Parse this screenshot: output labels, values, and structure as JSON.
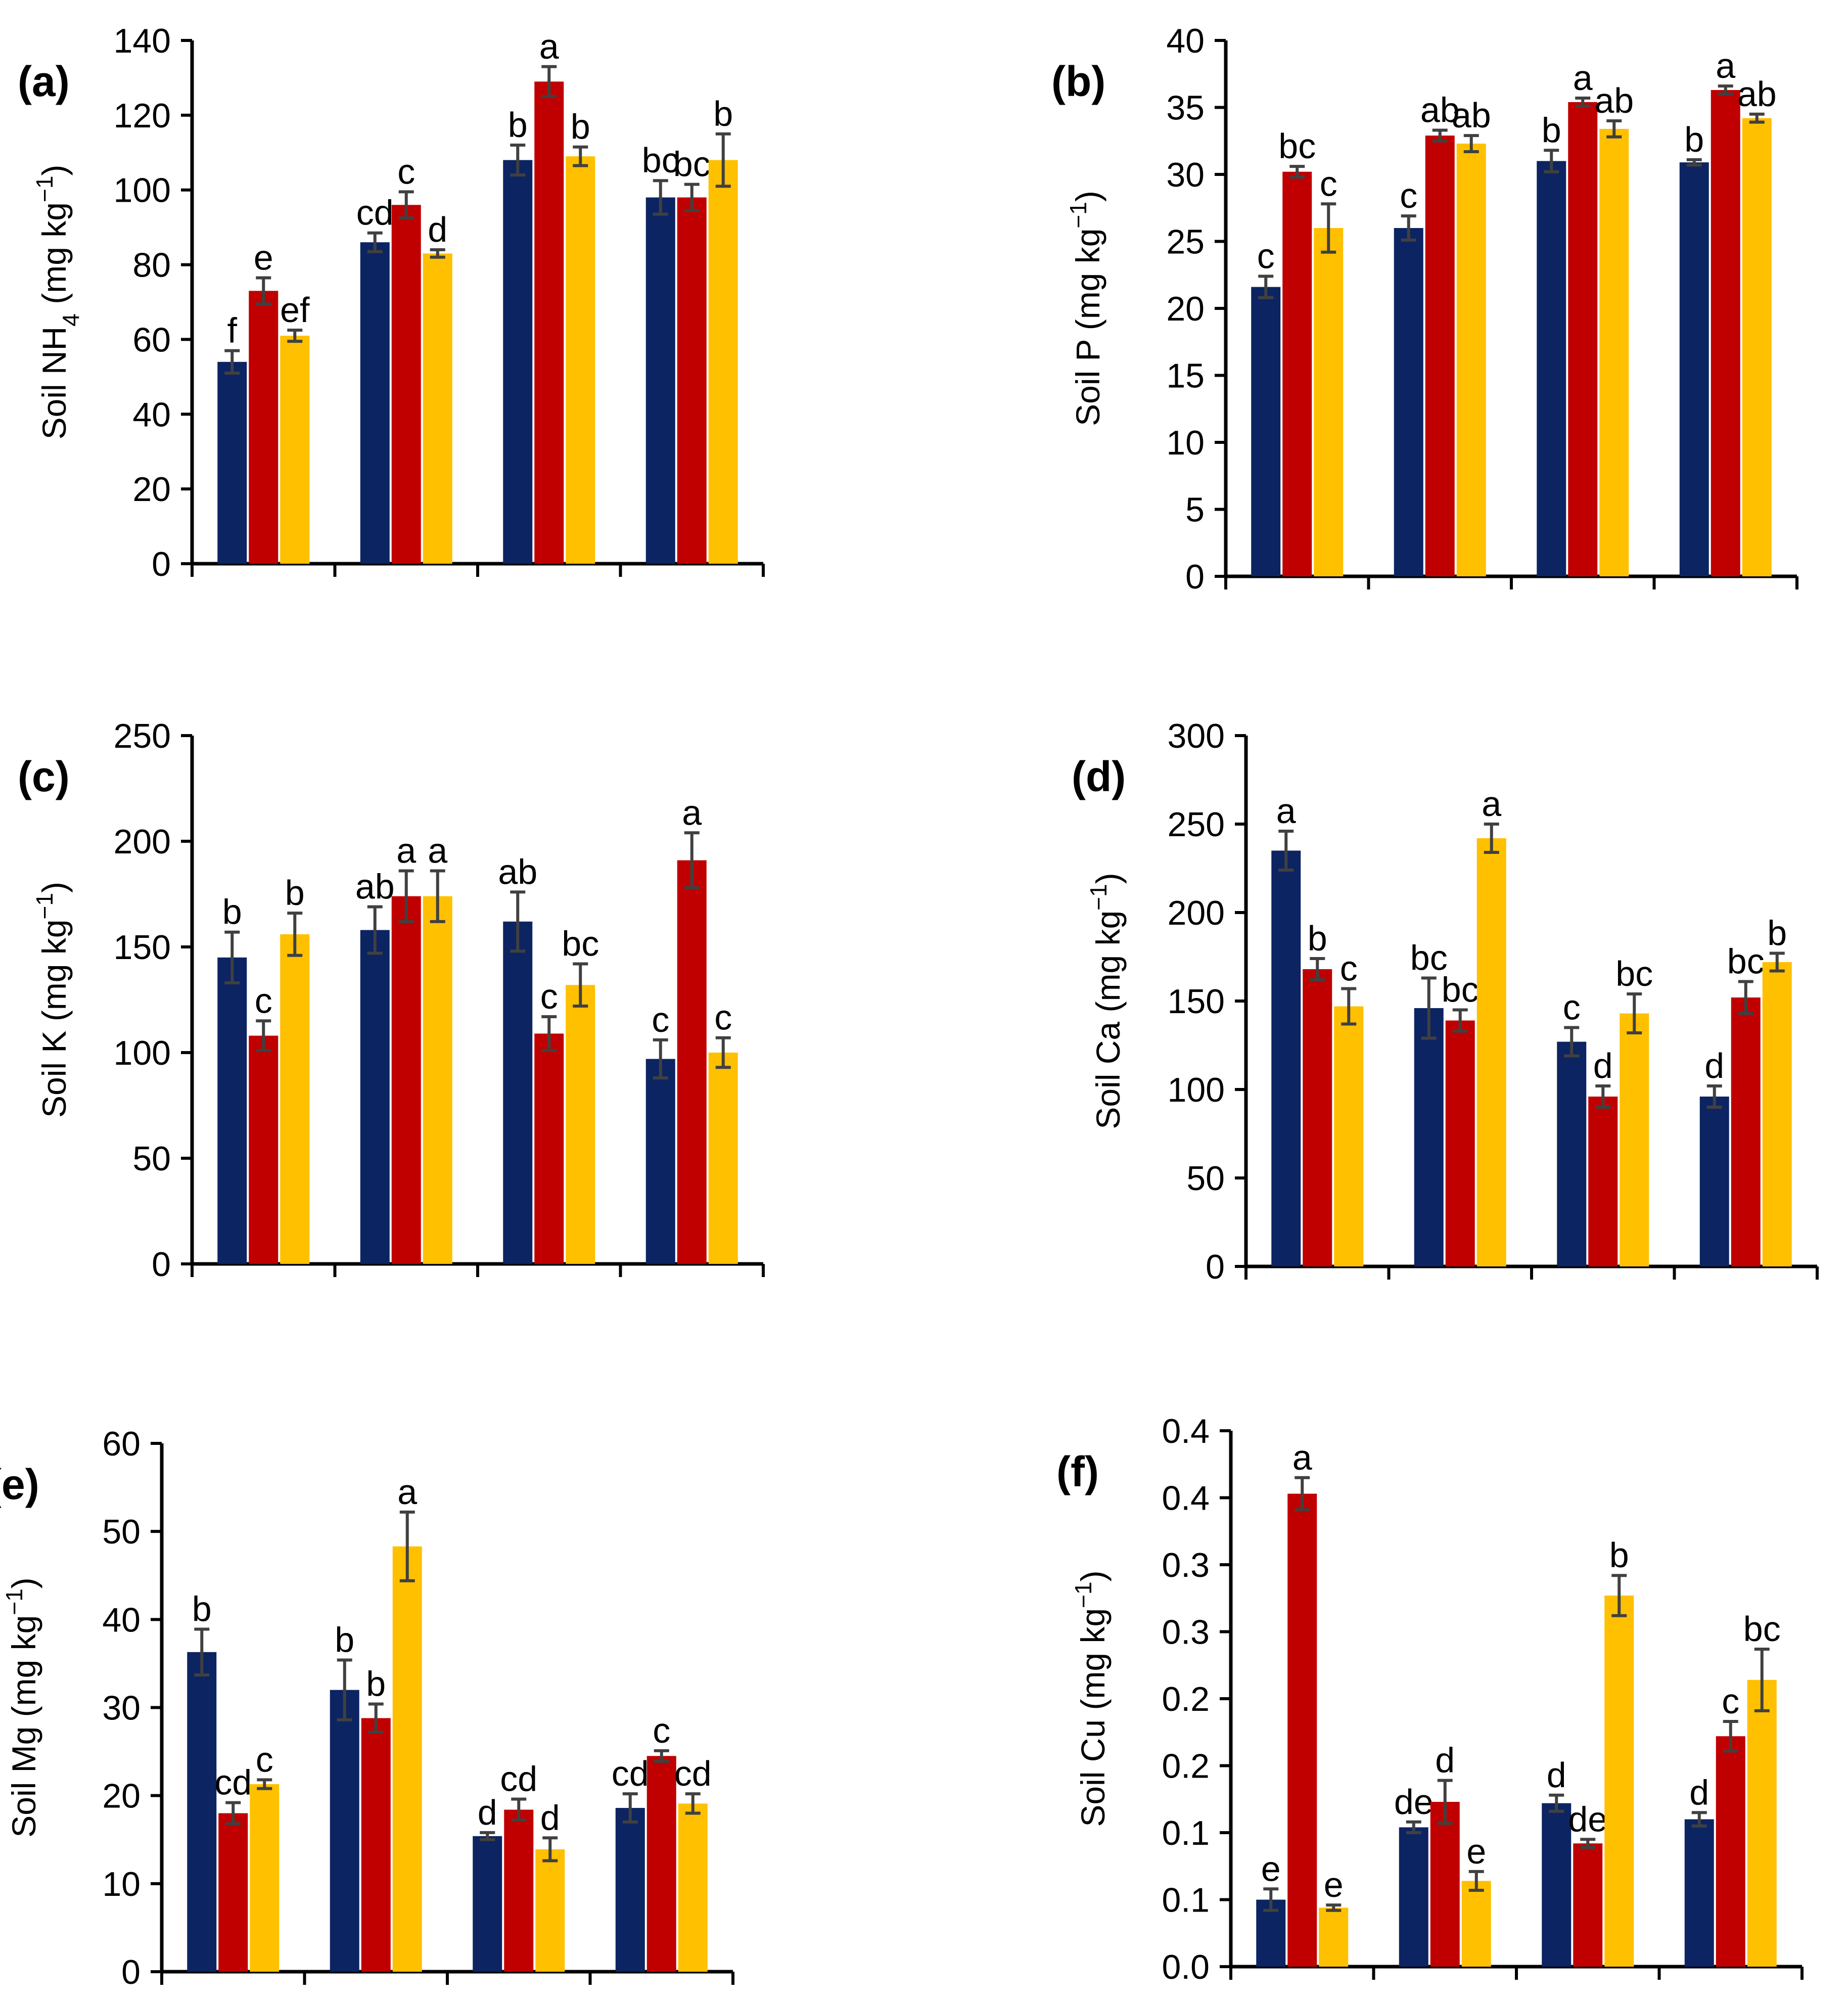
{
  "colors": {
    "series1": "#0c2461",
    "series2": "#c00000",
    "series3": "#ffc000",
    "error_bar": "#404040",
    "axis": "#000000"
  },
  "chart_data": [
    {
      "panel_label": "(a)",
      "type": "bar",
      "ylabel_main": "Soil NH",
      "ylabel_sub": "4",
      "ylabel_unit": " (mg kg",
      "ylabel_sup": "−1",
      "ylabel_close": ")",
      "ylim": [
        0,
        140
      ],
      "yticks": [
        0,
        20,
        40,
        60,
        80,
        100,
        120,
        140
      ],
      "ytick_labels": [
        "0",
        "20",
        "40",
        "60",
        "80",
        "100",
        "120",
        "140"
      ],
      "groups": 4,
      "series": [
        {
          "values": [
            54,
            86,
            108,
            98
          ],
          "errors": [
            3,
            2.5,
            4,
            4.5
          ],
          "letters": [
            "f",
            "cd",
            "b",
            "bc"
          ]
        },
        {
          "values": [
            73,
            96,
            129,
            98
          ],
          "errors": [
            3.5,
            3.5,
            4,
            3.5
          ],
          "letters": [
            "e",
            "c",
            "a",
            "bc"
          ]
        },
        {
          "values": [
            61,
            83,
            109,
            108
          ],
          "errors": [
            1.5,
            1,
            2.5,
            7
          ],
          "letters": [
            "ef",
            "d",
            "b",
            "b"
          ]
        }
      ]
    },
    {
      "panel_label": "(b)",
      "type": "bar",
      "ylabel_main": "Soil P",
      "ylabel_sub": "",
      "ylabel_unit": " (mg kg",
      "ylabel_sup": "−1",
      "ylabel_close": ")",
      "ylim": [
        0,
        40
      ],
      "yticks": [
        0,
        5,
        10,
        15,
        20,
        25,
        30,
        35,
        40
      ],
      "ytick_labels": [
        "0",
        "5",
        "10",
        "15",
        "20",
        "25",
        "30",
        "35",
        "40"
      ],
      "groups": 4,
      "series": [
        {
          "values": [
            21.6,
            26,
            31,
            30.9
          ],
          "errors": [
            0.8,
            0.9,
            0.8,
            0.2
          ],
          "letters": [
            "c",
            "c",
            "b",
            "b"
          ]
        },
        {
          "values": [
            30.2,
            32.9,
            35.4,
            36.3
          ],
          "errors": [
            0.4,
            0.4,
            0.3,
            0.3
          ],
          "letters": [
            "bc",
            "ab",
            "a",
            "a"
          ]
        },
        {
          "values": [
            26,
            32.3,
            33.4,
            34.2
          ],
          "errors": [
            1.8,
            0.6,
            0.6,
            0.3
          ],
          "letters": [
            "c",
            "ab",
            "ab",
            "ab"
          ]
        }
      ]
    },
    {
      "panel_label": "(c)",
      "type": "bar",
      "ylabel_main": "Soil K",
      "ylabel_sub": "",
      "ylabel_unit": " (mg kg",
      "ylabel_sup": "−1",
      "ylabel_close": ")",
      "ylim": [
        0,
        250
      ],
      "yticks": [
        0,
        50,
        100,
        150,
        200,
        250
      ],
      "ytick_labels": [
        "0",
        "50",
        "100",
        "150",
        "200",
        "250"
      ],
      "groups": 4,
      "series": [
        {
          "values": [
            145,
            158,
            162,
            97
          ],
          "errors": [
            12,
            11,
            14,
            9
          ],
          "letters": [
            "b",
            "ab",
            "ab",
            "c"
          ]
        },
        {
          "values": [
            108,
            174,
            109,
            191
          ],
          "errors": [
            7,
            12,
            8,
            13
          ],
          "letters": [
            "c",
            "a",
            "c",
            "a"
          ]
        },
        {
          "values": [
            156,
            174,
            132,
            100
          ],
          "errors": [
            10,
            12,
            10,
            7
          ],
          "letters": [
            "b",
            "a",
            "bc",
            "c"
          ]
        }
      ]
    },
    {
      "panel_label": "(d)",
      "type": "bar",
      "ylabel_main": "Soil Ca",
      "ylabel_sub": "",
      "ylabel_unit": " (mg kg",
      "ylabel_sup": "−1",
      "ylabel_close": ")",
      "ylim": [
        0,
        300
      ],
      "yticks": [
        0,
        50,
        100,
        150,
        200,
        250,
        300
      ],
      "ytick_labels": [
        "0",
        "50",
        "100",
        "150",
        "200",
        "250",
        "300"
      ],
      "groups": 4,
      "series": [
        {
          "values": [
            235,
            146,
            127,
            96
          ],
          "errors": [
            11,
            17,
            8,
            6
          ],
          "letters": [
            "a",
            "bc",
            "c",
            "d"
          ]
        },
        {
          "values": [
            168,
            139,
            96,
            152
          ],
          "errors": [
            6,
            6,
            6,
            9
          ],
          "letters": [
            "b",
            "bc",
            "d",
            "bc"
          ]
        },
        {
          "values": [
            147,
            242,
            143,
            172
          ],
          "errors": [
            10,
            8,
            11,
            5
          ],
          "letters": [
            "c",
            "a",
            "bc",
            "b"
          ]
        }
      ]
    },
    {
      "panel_label": "(e)",
      "type": "bar",
      "ylabel_main": "Soil Mg",
      "ylabel_sub": "",
      "ylabel_unit": " (mg kg",
      "ylabel_sup": "−1",
      "ylabel_close": ")",
      "ylim": [
        0,
        60
      ],
      "yticks": [
        0,
        10,
        20,
        30,
        40,
        50,
        60
      ],
      "ytick_labels": [
        "0",
        "10",
        "20",
        "30",
        "40",
        "50",
        "60"
      ],
      "groups": 4,
      "series": [
        {
          "values": [
            36.3,
            32,
            15.4,
            18.6
          ],
          "errors": [
            2.6,
            3.4,
            0.4,
            1.6
          ],
          "letters": [
            "b",
            "b",
            "d",
            "cd"
          ]
        },
        {
          "values": [
            18,
            28.8,
            18.4,
            24.5
          ],
          "errors": [
            1.2,
            1.6,
            1.2,
            0.6
          ],
          "letters": [
            "cd",
            "b",
            "cd",
            "c"
          ]
        },
        {
          "values": [
            21.3,
            48.3,
            13.9,
            19.1
          ],
          "errors": [
            0.5,
            3.9,
            1.3,
            1.1
          ],
          "letters": [
            "c",
            "a",
            "d",
            "cd"
          ]
        }
      ]
    },
    {
      "panel_label": "(f)",
      "type": "bar",
      "ylabel_main": "Soil Cu",
      "ylabel_sub": "",
      "ylabel_unit": " (mg kg",
      "ylabel_sup": "−1",
      "ylabel_close": ")",
      "ylim": [
        0,
        0.4
      ],
      "yticks": [
        0,
        0.05,
        0.1,
        0.15,
        0.2,
        0.25,
        0.3,
        0.35,
        0.4
      ],
      "ytick_labels": [
        "0.0",
        "0.1",
        "0.1",
        "0.2",
        "0.2",
        "0.3",
        "0.3",
        "0.4",
        "0.4"
      ],
      "groups": 4,
      "series": [
        {
          "values": [
            0.05,
            0.104,
            0.122,
            0.11
          ],
          "errors": [
            0.008,
            0.004,
            0.006,
            0.005
          ],
          "letters": [
            "e",
            "de",
            "d",
            "d"
          ]
        },
        {
          "values": [
            0.353,
            0.123,
            0.092,
            0.172
          ],
          "errors": [
            0.012,
            0.016,
            0.003,
            0.011
          ],
          "letters": [
            "a",
            "d",
            "de",
            "c"
          ]
        },
        {
          "values": [
            0.044,
            0.064,
            0.277,
            0.214
          ],
          "errors": [
            0.002,
            0.007,
            0.015,
            0.023
          ],
          "letters": [
            "e",
            "e",
            "b",
            "bc"
          ]
        }
      ]
    }
  ]
}
